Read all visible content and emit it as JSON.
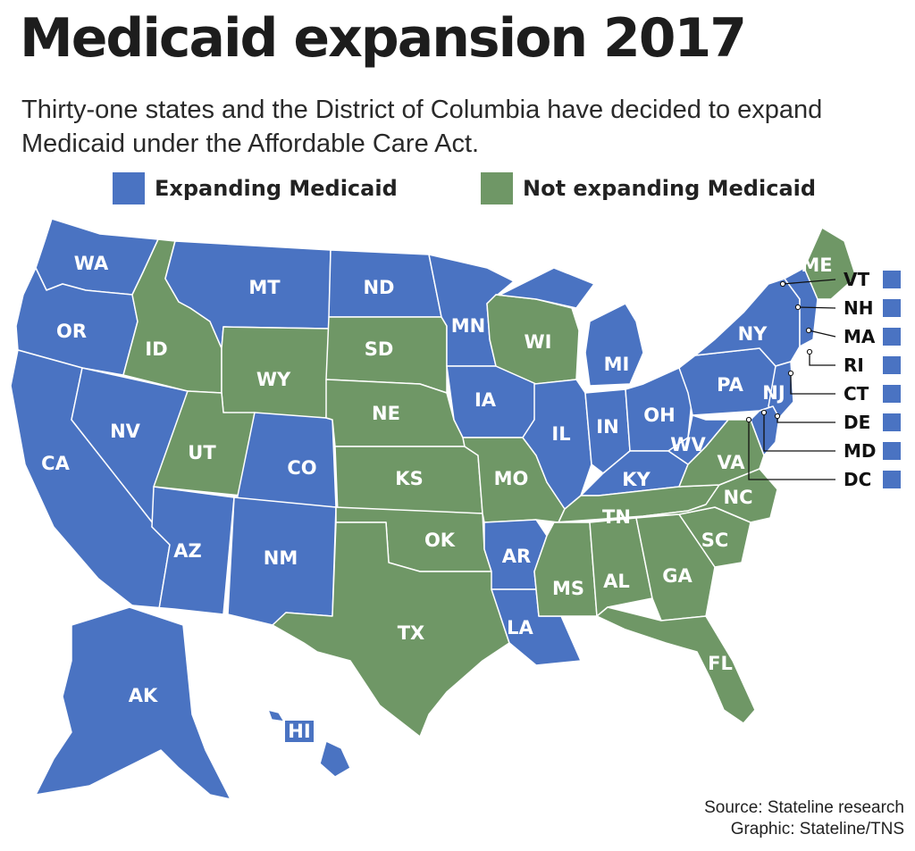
{
  "title": "Medicaid expansion 2017",
  "subtitle": "Thirty-one states and the District of Columbia have decided to expand Medicaid under the Affordable Care Act.",
  "colors": {
    "expanding": "#4a73c2",
    "not_expanding": "#6f9766"
  },
  "legend": [
    {
      "key": "expanding",
      "label": "Expanding Medicaid"
    },
    {
      "key": "not_expanding",
      "label": "Not expanding Medicaid"
    }
  ],
  "states": [
    {
      "code": "WA",
      "status": "expanding"
    },
    {
      "code": "OR",
      "status": "expanding"
    },
    {
      "code": "CA",
      "status": "expanding"
    },
    {
      "code": "NV",
      "status": "expanding"
    },
    {
      "code": "ID",
      "status": "not_expanding"
    },
    {
      "code": "MT",
      "status": "expanding"
    },
    {
      "code": "WY",
      "status": "not_expanding"
    },
    {
      "code": "UT",
      "status": "not_expanding"
    },
    {
      "code": "AZ",
      "status": "expanding"
    },
    {
      "code": "CO",
      "status": "expanding"
    },
    {
      "code": "NM",
      "status": "expanding"
    },
    {
      "code": "ND",
      "status": "expanding"
    },
    {
      "code": "SD",
      "status": "not_expanding"
    },
    {
      "code": "NE",
      "status": "not_expanding"
    },
    {
      "code": "KS",
      "status": "not_expanding"
    },
    {
      "code": "OK",
      "status": "not_expanding"
    },
    {
      "code": "TX",
      "status": "not_expanding"
    },
    {
      "code": "MN",
      "status": "expanding"
    },
    {
      "code": "IA",
      "status": "expanding"
    },
    {
      "code": "MO",
      "status": "not_expanding"
    },
    {
      "code": "AR",
      "status": "expanding"
    },
    {
      "code": "LA",
      "status": "expanding"
    },
    {
      "code": "WI",
      "status": "not_expanding"
    },
    {
      "code": "IL",
      "status": "expanding"
    },
    {
      "code": "MI",
      "status": "expanding"
    },
    {
      "code": "IN",
      "status": "expanding"
    },
    {
      "code": "OH",
      "status": "expanding"
    },
    {
      "code": "KY",
      "status": "expanding"
    },
    {
      "code": "TN",
      "status": "not_expanding"
    },
    {
      "code": "MS",
      "status": "not_expanding"
    },
    {
      "code": "AL",
      "status": "not_expanding"
    },
    {
      "code": "GA",
      "status": "not_expanding"
    },
    {
      "code": "FL",
      "status": "not_expanding"
    },
    {
      "code": "SC",
      "status": "not_expanding"
    },
    {
      "code": "NC",
      "status": "not_expanding"
    },
    {
      "code": "VA",
      "status": "not_expanding"
    },
    {
      "code": "WV",
      "status": "expanding"
    },
    {
      "code": "PA",
      "status": "expanding"
    },
    {
      "code": "NY",
      "status": "expanding"
    },
    {
      "code": "ME",
      "status": "not_expanding"
    },
    {
      "code": "AK",
      "status": "expanding"
    },
    {
      "code": "HI",
      "status": "expanding"
    }
  ],
  "east_states": [
    {
      "code": "VT",
      "status": "expanding"
    },
    {
      "code": "NH",
      "status": "expanding"
    },
    {
      "code": "MA",
      "status": "expanding"
    },
    {
      "code": "RI",
      "status": "expanding"
    },
    {
      "code": "CT",
      "status": "expanding"
    },
    {
      "code": "DE",
      "status": "expanding"
    },
    {
      "code": "MD",
      "status": "expanding"
    },
    {
      "code": "DC",
      "status": "expanding"
    }
  ],
  "nj": {
    "code": "NJ",
    "status": "expanding"
  },
  "source": {
    "line1": "Source: Stateline research",
    "line2": "Graphic: Stateline/TNS"
  }
}
